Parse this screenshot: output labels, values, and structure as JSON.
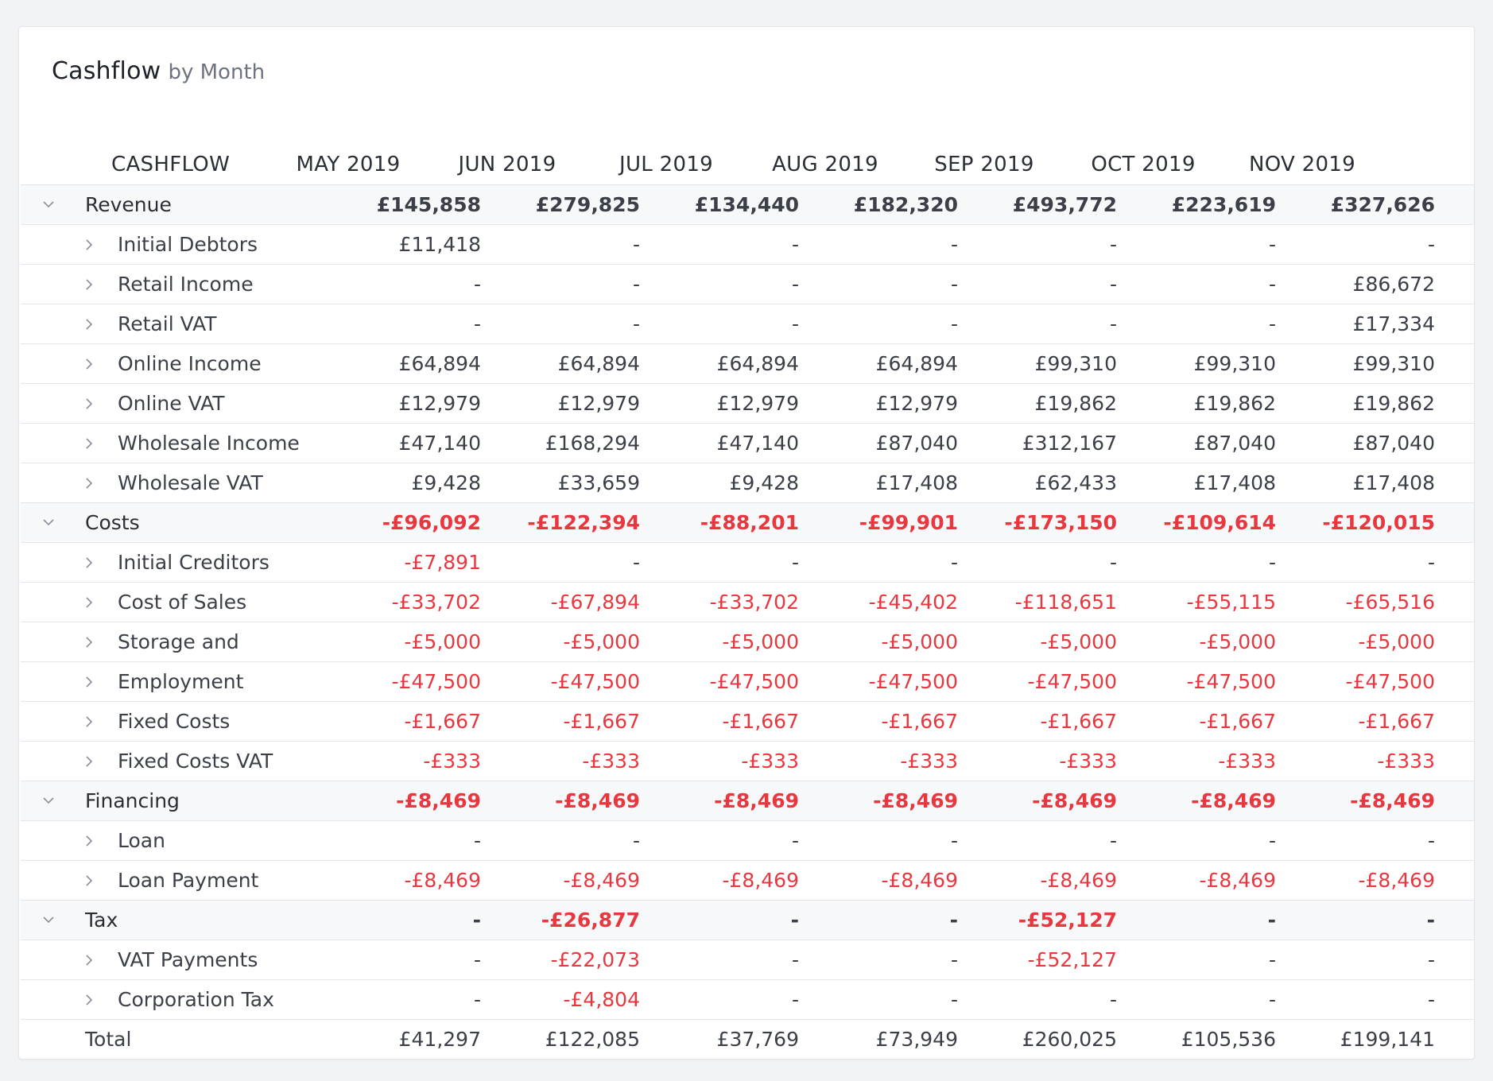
{
  "title": {
    "main": "Cashflow",
    "sub": "by Month"
  },
  "header": {
    "label": "CASHFLOW",
    "months": [
      "MAY 2019",
      "JUN 2019",
      "JUL 2019",
      "AUG 2019",
      "SEP 2019",
      "OCT 2019",
      "NOV 2019"
    ]
  },
  "icons": {
    "expanded": "chevron-down-icon",
    "collapsed": "chevron-right-icon"
  },
  "colors": {
    "negative": "#e8373f",
    "group_bg": "#f7f8fa"
  },
  "rows": [
    {
      "type": "group",
      "label": "Revenue",
      "values": [
        "£145,858",
        "£279,825",
        "£134,440",
        "£182,320",
        "£493,772",
        "£223,619",
        "£327,626"
      ]
    },
    {
      "type": "item",
      "label": "Initial Debtors",
      "values": [
        "£11,418",
        "-",
        "-",
        "-",
        "-",
        "-",
        "-"
      ]
    },
    {
      "type": "item",
      "label": "Retail Income",
      "values": [
        "-",
        "-",
        "-",
        "-",
        "-",
        "-",
        "£86,672"
      ]
    },
    {
      "type": "item",
      "label": "Retail VAT",
      "values": [
        "-",
        "-",
        "-",
        "-",
        "-",
        "-",
        "£17,334"
      ]
    },
    {
      "type": "item",
      "label": "Online Income",
      "values": [
        "£64,894",
        "£64,894",
        "£64,894",
        "£64,894",
        "£99,310",
        "£99,310",
        "£99,310"
      ]
    },
    {
      "type": "item",
      "label": "Online VAT",
      "values": [
        "£12,979",
        "£12,979",
        "£12,979",
        "£12,979",
        "£19,862",
        "£19,862",
        "£19,862"
      ]
    },
    {
      "type": "item",
      "label": "Wholesale Income",
      "values": [
        "£47,140",
        "£168,294",
        "£47,140",
        "£87,040",
        "£312,167",
        "£87,040",
        "£87,040"
      ]
    },
    {
      "type": "item",
      "label": "Wholesale VAT",
      "values": [
        "£9,428",
        "£33,659",
        "£9,428",
        "£17,408",
        "£62,433",
        "£17,408",
        "£17,408"
      ]
    },
    {
      "type": "group",
      "label": "Costs",
      "values": [
        "-£96,092",
        "-£122,394",
        "-£88,201",
        "-£99,901",
        "-£173,150",
        "-£109,614",
        "-£120,015"
      ]
    },
    {
      "type": "item",
      "label": "Initial Creditors",
      "values": [
        "-£7,891",
        "-",
        "-",
        "-",
        "-",
        "-",
        "-"
      ]
    },
    {
      "type": "item",
      "label": "Cost of Sales",
      "values": [
        "-£33,702",
        "-£67,894",
        "-£33,702",
        "-£45,402",
        "-£118,651",
        "-£55,115",
        "-£65,516"
      ]
    },
    {
      "type": "item",
      "label": "Storage and",
      "values": [
        "-£5,000",
        "-£5,000",
        "-£5,000",
        "-£5,000",
        "-£5,000",
        "-£5,000",
        "-£5,000"
      ]
    },
    {
      "type": "item",
      "label": "Employment",
      "values": [
        "-£47,500",
        "-£47,500",
        "-£47,500",
        "-£47,500",
        "-£47,500",
        "-£47,500",
        "-£47,500"
      ]
    },
    {
      "type": "item",
      "label": "Fixed Costs",
      "values": [
        "-£1,667",
        "-£1,667",
        "-£1,667",
        "-£1,667",
        "-£1,667",
        "-£1,667",
        "-£1,667"
      ]
    },
    {
      "type": "item",
      "label": "Fixed Costs VAT",
      "values": [
        "-£333",
        "-£333",
        "-£333",
        "-£333",
        "-£333",
        "-£333",
        "-£333"
      ]
    },
    {
      "type": "group",
      "label": "Financing",
      "values": [
        "-£8,469",
        "-£8,469",
        "-£8,469",
        "-£8,469",
        "-£8,469",
        "-£8,469",
        "-£8,469"
      ]
    },
    {
      "type": "item",
      "label": "Loan",
      "values": [
        "-",
        "-",
        "-",
        "-",
        "-",
        "-",
        "-"
      ]
    },
    {
      "type": "item",
      "label": "Loan Payment",
      "values": [
        "-£8,469",
        "-£8,469",
        "-£8,469",
        "-£8,469",
        "-£8,469",
        "-£8,469",
        "-£8,469"
      ]
    },
    {
      "type": "group",
      "label": "Tax",
      "values": [
        "-",
        "-£26,877",
        "-",
        "-",
        "-£52,127",
        "-",
        "-"
      ]
    },
    {
      "type": "item",
      "label": "VAT Payments",
      "values": [
        "-",
        "-£22,073",
        "-",
        "-",
        "-£52,127",
        "-",
        "-"
      ]
    },
    {
      "type": "item",
      "label": "Corporation Tax",
      "values": [
        "-",
        "-£4,804",
        "-",
        "-",
        "-",
        "-",
        "-"
      ]
    },
    {
      "type": "total",
      "label": "Total",
      "values": [
        "£41,297",
        "£122,085",
        "£37,769",
        "£73,949",
        "£260,025",
        "£105,536",
        "£199,141"
      ]
    }
  ]
}
